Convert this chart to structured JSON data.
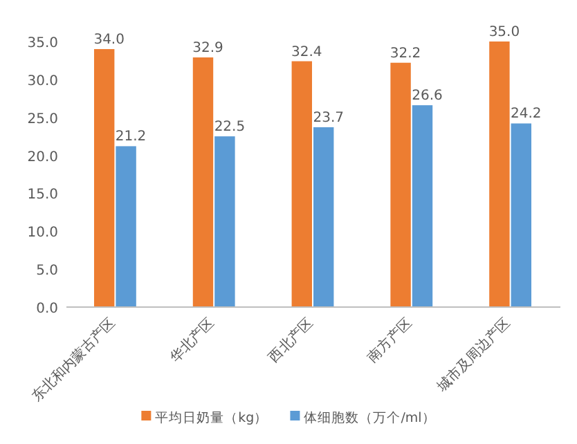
{
  "chart_data": {
    "type": "bar",
    "categories": [
      "东北和内蒙古产区",
      "华北产区",
      "西北产区",
      "南方产区",
      "城市及周边产区"
    ],
    "series": [
      {
        "name": "平均日奶量（kg）",
        "color": "#ed7d31",
        "values": [
          34.0,
          32.9,
          32.4,
          32.2,
          35.0
        ],
        "value_labels": [
          "34.0",
          "32.9",
          "32.4",
          "32.2",
          "35.0"
        ]
      },
      {
        "name": "体细胞数（万个/ml）",
        "color": "#5b9bd5",
        "values": [
          21.2,
          22.5,
          23.7,
          26.6,
          24.2
        ],
        "value_labels": [
          "21.2",
          "22.5",
          "23.7",
          "26.6",
          "24.2"
        ]
      }
    ],
    "ylim": [
      0,
      35
    ],
    "yticks": [
      {
        "value": 0,
        "label": "0.0"
      },
      {
        "value": 5,
        "label": "5.0"
      },
      {
        "value": 10,
        "label": "10.0"
      },
      {
        "value": 15,
        "label": "15.0"
      },
      {
        "value": 20,
        "label": "20.0"
      },
      {
        "value": 25,
        "label": "25.0"
      },
      {
        "value": 30,
        "label": "30.0"
      },
      {
        "value": 35,
        "label": "35.0"
      }
    ],
    "legend": "bottom",
    "grid": false
  }
}
